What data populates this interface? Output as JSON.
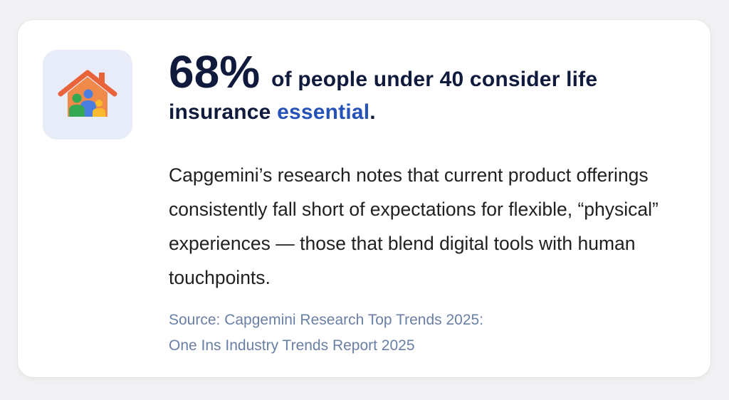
{
  "headline": {
    "stat": "68%",
    "text_before": "of people under 40 consider life insurance ",
    "accent_word": "essential",
    "text_after": "."
  },
  "body": "Capgemini’s research notes that current product offerings consistently fall short of expectations for flexible, “physical” experiences — those that blend digital tools with human touchpoints.",
  "source": {
    "line1": "Source: Capgemini Research Top Trends 2025:",
    "line2": "One Ins Industry Trends Report 2025"
  },
  "icon": {
    "name": "family-home-icon",
    "colors": {
      "roof": "#e8623a",
      "house": "#f08a4b",
      "person_green": "#34a853",
      "person_blue": "#4a7fe0",
      "person_yellow": "#f9bb2d",
      "tile_bg": "#e8ebf8"
    }
  },
  "colors": {
    "headline": "#0f1a3d",
    "accent": "#2452b8",
    "body": "#202124",
    "source": "#6a7fa6"
  }
}
